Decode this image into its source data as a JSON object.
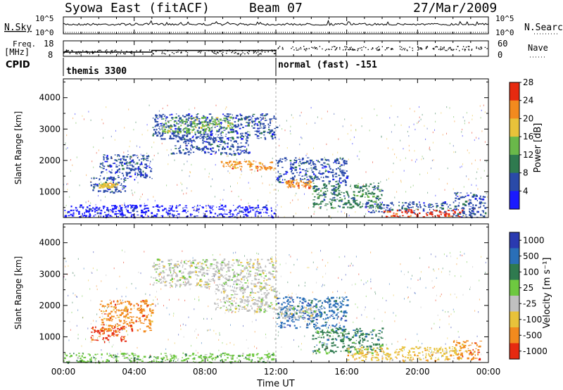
{
  "header": {
    "station": "Syowa East (fitACF)",
    "beam": "Beam 07",
    "date": "27/Mar/2009"
  },
  "nsky_panel": {
    "label": "N.Sky",
    "right_label": "N.Search",
    "tick_top": "10^5",
    "tick_bottom": "10^0",
    "right_tick_top": "10^5",
    "right_tick_bottom": "10^0"
  },
  "freq_panel": {
    "label_line1": "Freq.",
    "label_line2": "[MHz]",
    "ticks_left": [
      "18",
      "8"
    ],
    "right_label": "Nave",
    "ticks_right": [
      "60",
      "0"
    ],
    "freq_steps": [
      {
        "t_start": 0.0,
        "t_end": 5.0,
        "mhz": 11.0
      },
      {
        "t_start": 5.0,
        "t_end": 12.0,
        "mhz": 12.2
      }
    ]
  },
  "cpid": {
    "label": "CPID",
    "programs": [
      {
        "name": "themis 3300",
        "t_start": 0.0,
        "t_end": 12.0
      },
      {
        "name": "normal (fast) -151",
        "t_start": 12.0,
        "t_end": 24.0
      }
    ]
  },
  "power_panel": {
    "ylabel": "Slant Range [km]",
    "yticks": [
      "1000",
      "2000",
      "3000",
      "4000"
    ],
    "colorbar_label": "Power [dB]",
    "colorbar_ticks": [
      "4",
      "8",
      "12",
      "16",
      "20",
      "24",
      "28"
    ],
    "colors": [
      "#1a1aff",
      "#2a4aa8",
      "#2f7a4f",
      "#6ab84a",
      "#e8c23a",
      "#f28a1e",
      "#e62a10"
    ]
  },
  "velocity_panel": {
    "ylabel": "Slant Range [km]",
    "yticks": [
      "1000",
      "2000",
      "3000",
      "4000"
    ],
    "colorbar_label": "Velocity [m s⁻¹]",
    "colorbar_ticks": [
      "1000",
      "500",
      "100",
      "25",
      "-25",
      "-100",
      "-500",
      "-1000"
    ],
    "colors": [
      "#2a3ab0",
      "#2a6fb8",
      "#2f7a4f",
      "#6ec840",
      "#c0c0c0",
      "#e8c23a",
      "#f28a1e",
      "#e62a10"
    ]
  },
  "xaxis": {
    "ticks": [
      "00:00",
      "04:00",
      "08:00",
      "12:00",
      "16:00",
      "20:00",
      "00:00"
    ],
    "label": "Time UT"
  },
  "chart_data": {
    "type": "heatmap",
    "x_unit": "hours UT",
    "xlim": [
      0,
      24
    ],
    "y_unit": "km",
    "ylim": [
      180,
      4600
    ],
    "power_clim_db": [
      0,
      30
    ],
    "velocity_clim_ms": [
      -1000,
      1000
    ],
    "power_regions": [
      {
        "t": [
          5.0,
          12.0
        ],
        "r": [
          2700,
          3500
        ],
        "level": 1
      },
      {
        "t": [
          5.5,
          9.5
        ],
        "r": [
          2900,
          3400
        ],
        "level": 3
      },
      {
        "t": [
          6.0,
          10.5
        ],
        "r": [
          2200,
          2800
        ],
        "level": 1
      },
      {
        "t": [
          8.5,
          12.0
        ],
        "r": [
          1700,
          2000
        ],
        "level": 5
      },
      {
        "t": [
          2.0,
          5.0
        ],
        "r": [
          1400,
          2200
        ],
        "level": 1
      },
      {
        "t": [
          1.5,
          3.5
        ],
        "r": [
          1000,
          1500
        ],
        "level": 1
      },
      {
        "t": [
          2.0,
          3.0
        ],
        "r": [
          1150,
          1300
        ],
        "level": 4
      },
      {
        "t": [
          12.0,
          16.0
        ],
        "r": [
          1300,
          2100
        ],
        "level": 1
      },
      {
        "t": [
          14.0,
          18.0
        ],
        "r": [
          500,
          1300
        ],
        "level": 2
      },
      {
        "t": [
          12.5,
          14.0
        ],
        "r": [
          1150,
          1400
        ],
        "level": 5
      },
      {
        "t": [
          17.0,
          22.0
        ],
        "r": [
          350,
          700
        ],
        "level": 1
      },
      {
        "t": [
          18.0,
          22.5
        ],
        "r": [
          220,
          450
        ],
        "level": 6
      },
      {
        "t": [
          0.0,
          12.0
        ],
        "r": [
          200,
          600
        ],
        "level": 0
      },
      {
        "t": [
          22.0,
          23.8
        ],
        "r": [
          200,
          1000
        ],
        "level": 1
      }
    ],
    "velocity_regions": [
      {
        "t": [
          5.0,
          12.0
        ],
        "r": [
          2600,
          3500
        ],
        "level": 4
      },
      {
        "t": [
          8.5,
          12.0
        ],
        "r": [
          1800,
          2600
        ],
        "level": 4
      },
      {
        "t": [
          1.5,
          3.5
        ],
        "r": [
          850,
          1350
        ],
        "level": 7
      },
      {
        "t": [
          2.0,
          5.0
        ],
        "r": [
          1200,
          2200
        ],
        "level": 6
      },
      {
        "t": [
          12.0,
          16.0
        ],
        "r": [
          1300,
          2300
        ],
        "level": 1
      },
      {
        "t": [
          12.0,
          14.5
        ],
        "r": [
          1600,
          2000
        ],
        "level": 4
      },
      {
        "t": [
          14.0,
          18.0
        ],
        "r": [
          500,
          1300
        ],
        "level": 2
      },
      {
        "t": [
          16.0,
          22.5
        ],
        "r": [
          250,
          700
        ],
        "level": 5
      },
      {
        "t": [
          0.0,
          12.0
        ],
        "r": [
          200,
          500
        ],
        "level": 3
      },
      {
        "t": [
          22.0,
          23.5
        ],
        "r": [
          300,
          900
        ],
        "level": 6
      }
    ]
  }
}
